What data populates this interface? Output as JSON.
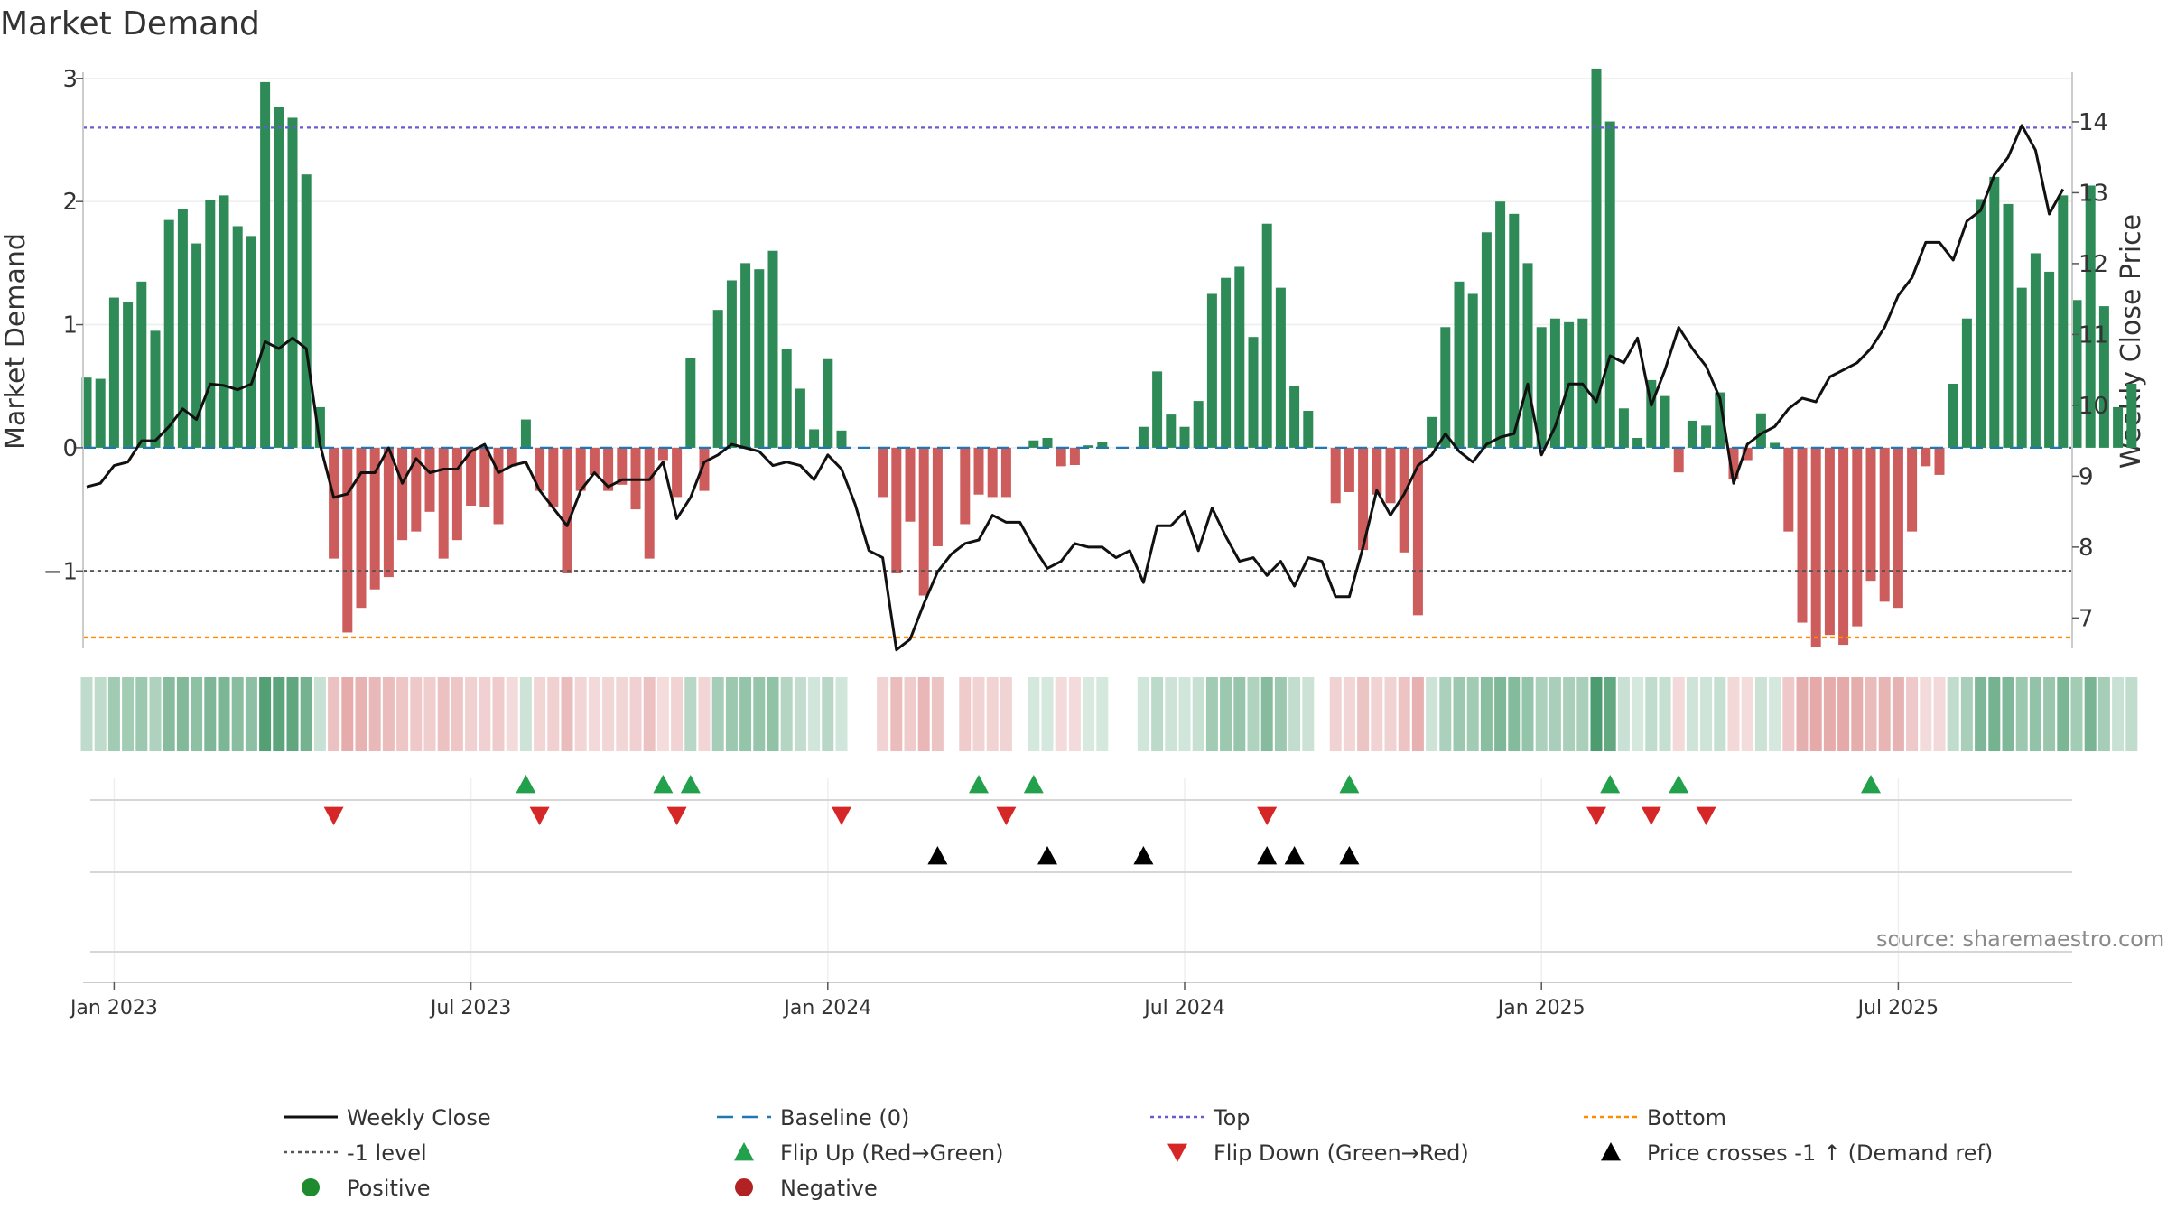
{
  "chart_data": {
    "type": "bar",
    "title": "Market Demand",
    "ylabel": "Market Demand",
    "y2label": "Weekly Close Price",
    "ylim": [
      -1.9,
      3.05
    ],
    "y_ticks": [
      3,
      2,
      1,
      0,
      -1
    ],
    "y_tick_labels": [
      "3",
      "2",
      "1",
      "0",
      "−1"
    ],
    "y2lim": [
      6.1,
      14.7
    ],
    "y2_ticks": [
      7,
      8,
      9,
      10,
      11,
      12,
      13,
      14
    ],
    "x_ticks": [
      {
        "week": 2,
        "label": "Jan 2023"
      },
      {
        "week": 28,
        "label": "Jul 2023"
      },
      {
        "week": 54,
        "label": "Jan 2024"
      },
      {
        "week": 80,
        "label": "Jul 2024"
      },
      {
        "week": 106,
        "label": "Jan 2025"
      },
      {
        "week": 132,
        "label": "Jul 2025"
      }
    ],
    "demand": [
      0.57,
      0.56,
      1.22,
      1.18,
      1.35,
      0.95,
      1.85,
      1.94,
      1.66,
      2.01,
      2.05,
      1.8,
      1.72,
      2.97,
      2.77,
      2.68,
      2.22,
      0.33,
      -0.9,
      -1.5,
      -1.3,
      -1.15,
      -1.05,
      -0.75,
      -0.68,
      -0.52,
      -0.9,
      -0.75,
      -0.47,
      -0.48,
      -0.62,
      -0.15,
      0.23,
      -0.35,
      -0.48,
      -1.02,
      -0.35,
      -0.22,
      -0.35,
      -0.3,
      -0.5,
      -0.9,
      -0.1,
      -0.4,
      0.73,
      -0.35,
      1.12,
      1.36,
      1.5,
      1.45,
      1.6,
      0.8,
      0.48,
      0.15,
      0.72,
      0.14,
      0,
      0,
      -0.4,
      -1.02,
      -0.6,
      -1.2,
      -0.8,
      0,
      -0.62,
      -0.38,
      -0.4,
      -0.4,
      0,
      0.06,
      0.08,
      -0.15,
      -0.14,
      0.02,
      0.05,
      0,
      0,
      0.17,
      0.62,
      0.27,
      0.17,
      0.38,
      1.25,
      1.38,
      1.47,
      0.9,
      1.82,
      1.3,
      0.5,
      0.3,
      0,
      -0.45,
      -0.36,
      -0.83,
      -0.38,
      -0.45,
      -0.85,
      -1.36,
      0.25,
      0.98,
      1.35,
      1.25,
      1.75,
      2.0,
      1.9,
      1.5,
      0.98,
      1.05,
      1.02,
      1.05,
      3.08,
      2.65,
      0.32,
      0.08,
      0.55,
      0.42,
      -0.2,
      0.22,
      0.18,
      0.45,
      -0.25,
      -0.1,
      0.28,
      0.04,
      -0.68,
      -1.42,
      -1.62,
      -1.52,
      -1.6,
      -1.45,
      -1.08,
      -1.25,
      -1.3,
      -0.68,
      -0.15,
      -0.22,
      0.52,
      1.05,
      2.02,
      2.2,
      1.98,
      1.3,
      1.58,
      1.43,
      2.05,
      1.2,
      2.13,
      1.15,
      0.33,
      0.52
    ],
    "weekly_close": [
      8.85,
      8.9,
      9.15,
      9.2,
      9.5,
      9.5,
      9.7,
      9.95,
      9.8,
      10.3,
      10.28,
      10.22,
      10.3,
      10.9,
      10.8,
      10.95,
      10.8,
      9.45,
      8.7,
      8.75,
      9.05,
      9.05,
      9.4,
      8.9,
      9.25,
      9.05,
      9.1,
      9.1,
      9.35,
      9.45,
      9.05,
      9.15,
      9.2,
      8.8,
      8.55,
      8.3,
      8.8,
      9.05,
      8.85,
      8.95,
      8.95,
      8.95,
      9.2,
      8.4,
      8.7,
      9.2,
      9.3,
      9.45,
      9.4,
      9.35,
      9.15,
      9.2,
      9.15,
      8.95,
      9.3,
      9.1,
      8.6,
      7.95,
      7.85,
      6.55,
      6.7,
      7.2,
      7.65,
      7.9,
      8.05,
      8.1,
      8.45,
      8.35,
      8.35,
      8.0,
      7.7,
      7.8,
      8.05,
      8.0,
      8.0,
      7.85,
      7.95,
      7.5,
      8.3,
      8.3,
      8.5,
      7.95,
      8.55,
      8.15,
      7.8,
      7.85,
      7.6,
      7.8,
      7.45,
      7.85,
      7.8,
      7.3,
      7.3,
      8.0,
      8.8,
      8.45,
      8.75,
      9.15,
      9.3,
      9.6,
      9.35,
      9.2,
      9.45,
      9.55,
      9.6,
      10.3,
      9.3,
      9.7,
      10.3,
      10.3,
      10.05,
      10.7,
      10.6,
      10.95,
      10.0,
      10.5,
      11.1,
      10.8,
      10.55,
      10.1,
      8.9,
      9.45,
      9.6,
      9.7,
      9.95,
      10.1,
      10.05,
      10.4,
      10.5,
      10.6,
      10.8,
      11.1,
      11.55,
      11.8,
      12.3,
      12.3,
      12.05,
      12.6,
      12.75,
      13.25,
      13.5,
      13.95,
      13.6,
      12.7,
      13.05
    ],
    "top_level": 2.6,
    "bottom_level": -1.54,
    "minus1_level": -1,
    "flip_up_weeks": [
      32,
      42,
      44,
      65,
      69,
      92,
      111,
      116,
      130
    ],
    "flip_down_weeks": [
      18,
      33,
      43,
      55,
      67,
      86,
      110,
      114,
      118
    ],
    "price_cross_weeks": [
      62,
      70,
      77,
      86,
      88,
      92
    ],
    "legend": [
      "Weekly Close",
      "Baseline (0)",
      "Top",
      "Bottom",
      "-1 level",
      "Flip Up (Red→Green)",
      "Flip Down (Green→Red)",
      "Price crosses -1 ↑ (Demand ref)",
      "Positive",
      "Negative"
    ],
    "source": "source: sharemaestro.com",
    "legend_position": "bottom"
  },
  "colors": {
    "positive_bar": "#2e8b57",
    "negative_bar": "#cd5c5c",
    "price_line": "#111111",
    "baseline": "#1f77b4",
    "top_line": "#6a5acd",
    "bottom_line": "#ff8c00",
    "minus1_line": "#555555",
    "flip_up": "#22a04b",
    "flip_down": "#d62728",
    "price_cross": "#000000",
    "positive_dot": "#1e8c2e",
    "negative_dot": "#b22222"
  }
}
